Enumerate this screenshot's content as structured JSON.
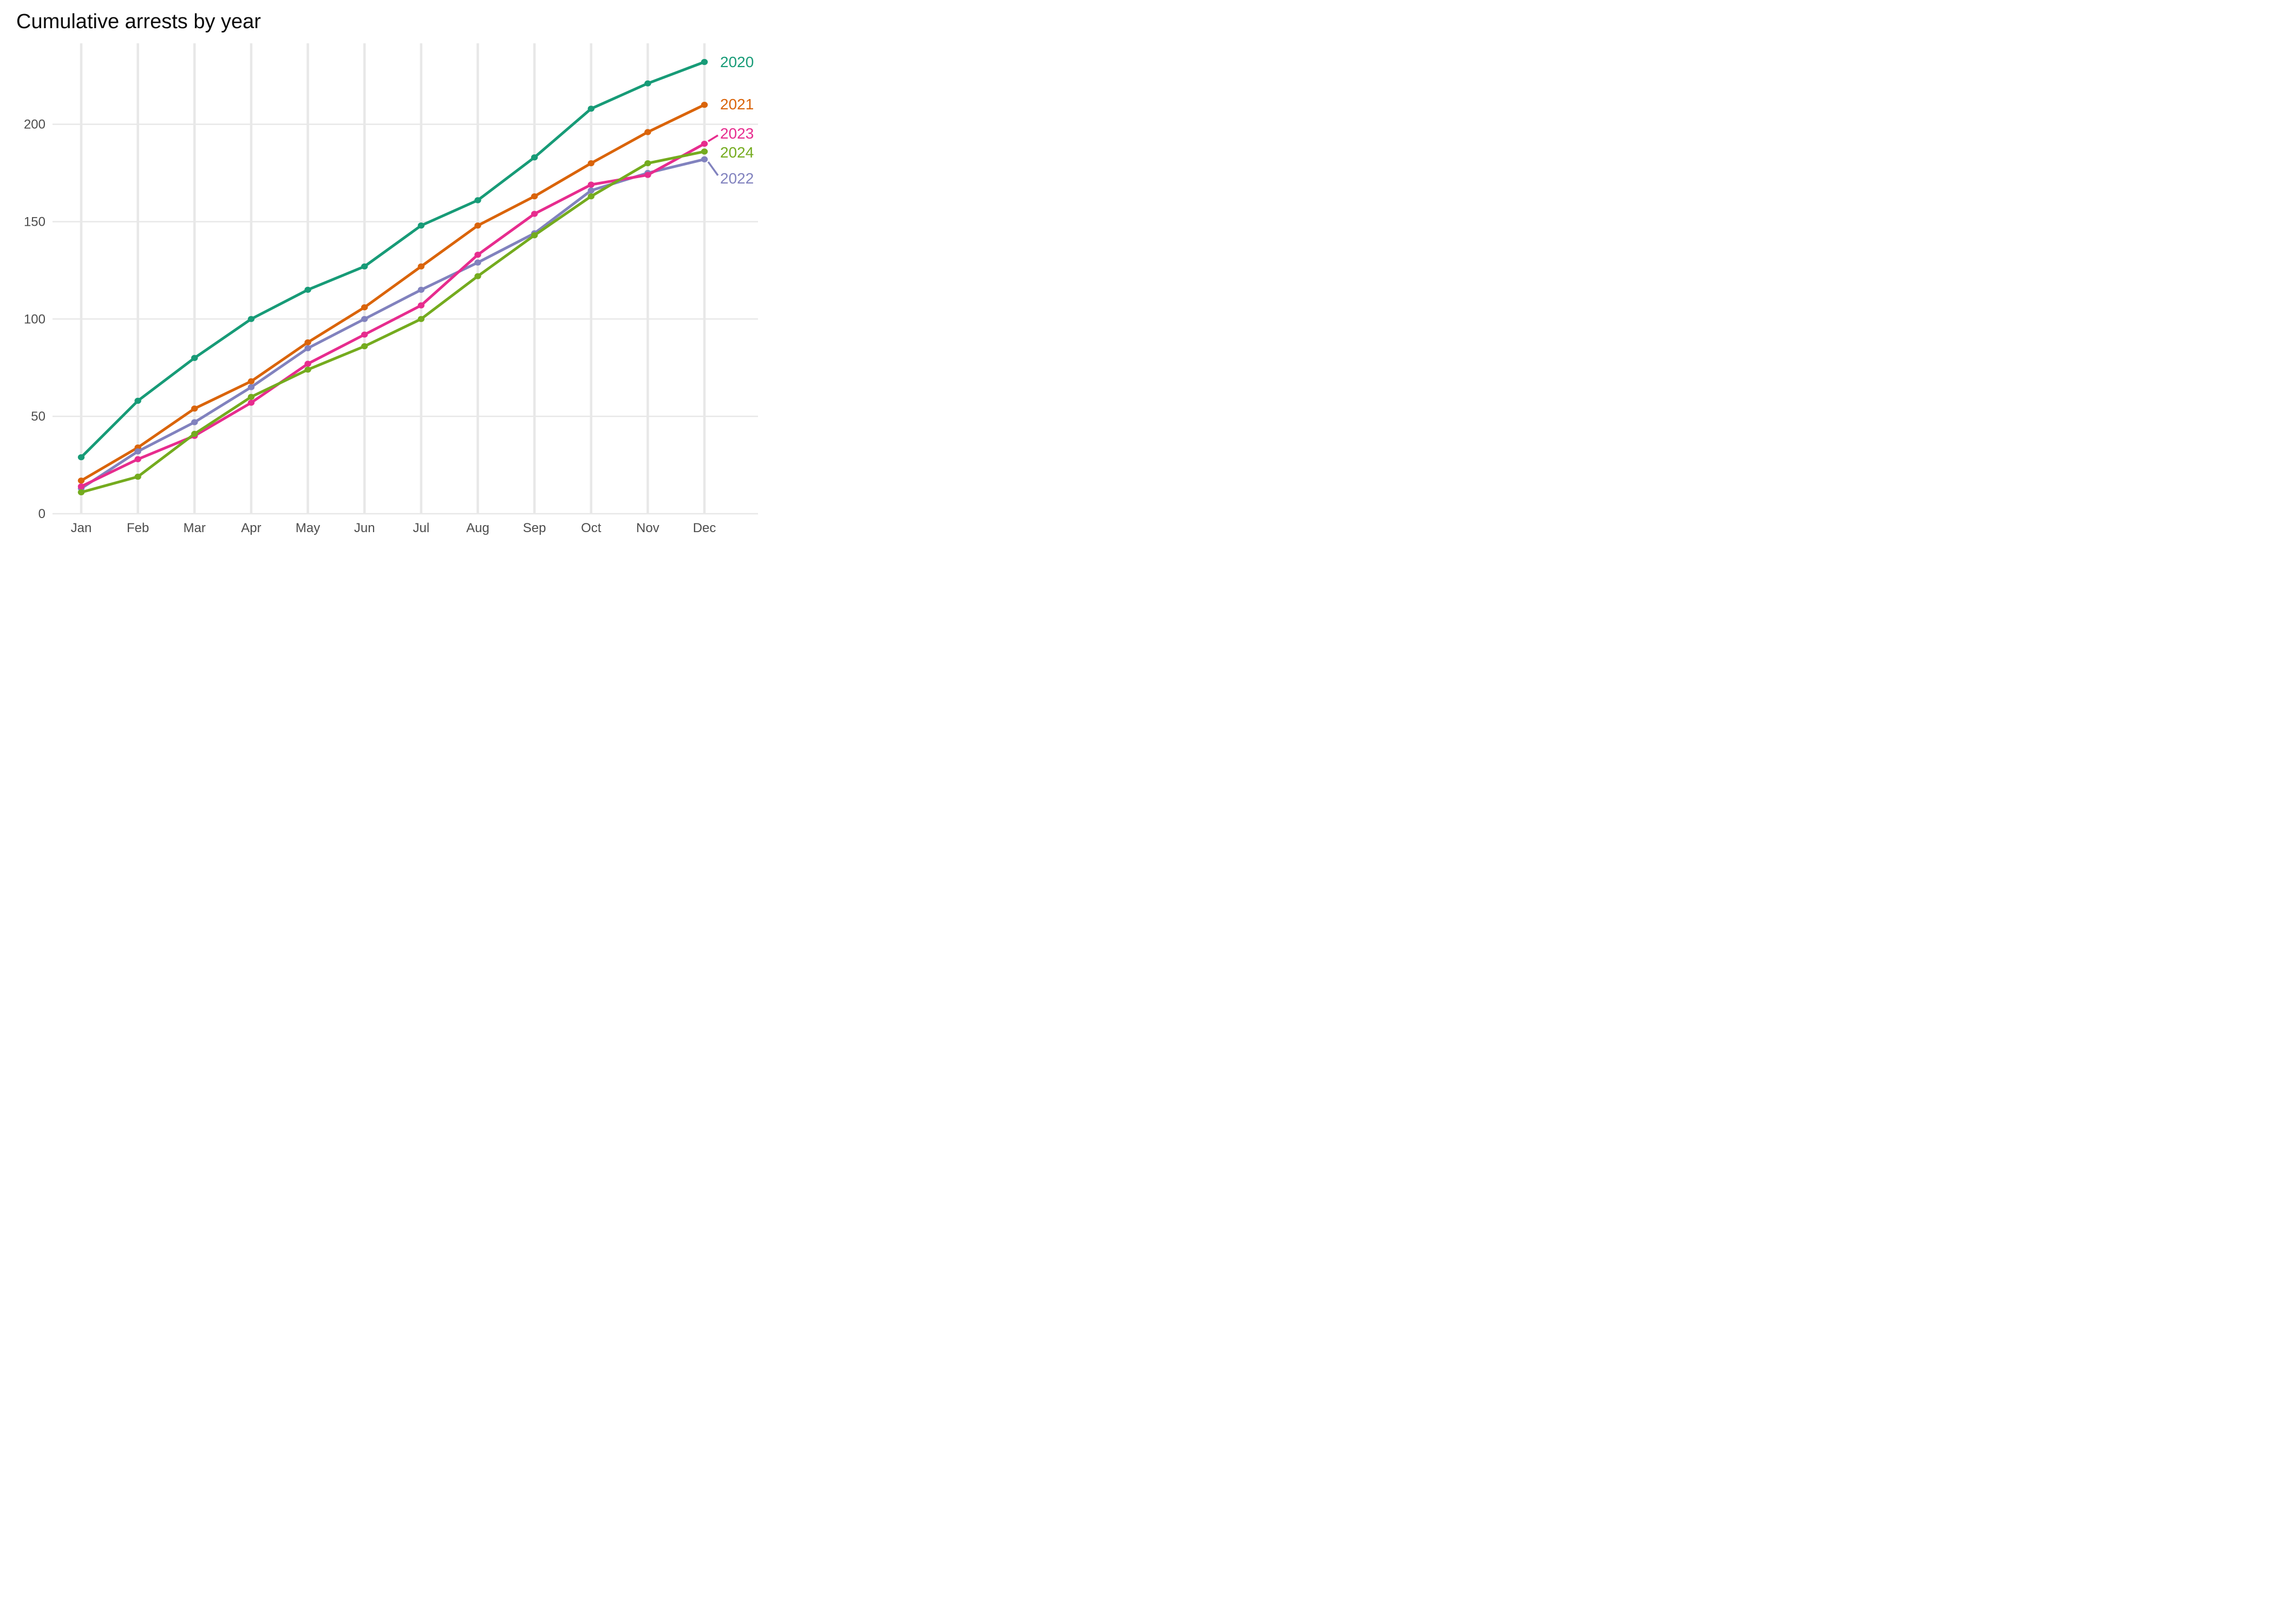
{
  "title": "Cumulative arrests by year",
  "chart_data": {
    "type": "line",
    "categories": [
      "Jan",
      "Feb",
      "Mar",
      "Apr",
      "May",
      "Jun",
      "Jul",
      "Aug",
      "Sep",
      "Oct",
      "Nov",
      "Dec"
    ],
    "series": [
      {
        "name": "2020",
        "color": "#179B77",
        "values": [
          29,
          58,
          80,
          100,
          115,
          127,
          148,
          161,
          183,
          208,
          221,
          232
        ]
      },
      {
        "name": "2021",
        "color": "#DA640A",
        "values": [
          17,
          34,
          54,
          68,
          88,
          106,
          127,
          148,
          163,
          180,
          196,
          210
        ]
      },
      {
        "name": "2022",
        "color": "#8182BE",
        "values": [
          13,
          32,
          47,
          65,
          85,
          100,
          115,
          129,
          144,
          166,
          175,
          182
        ]
      },
      {
        "name": "2023",
        "color": "#E72C8E",
        "values": [
          14,
          28,
          40,
          57,
          77,
          92,
          107,
          133,
          154,
          169,
          174,
          190
        ]
      },
      {
        "name": "2024",
        "color": "#74AB1E",
        "values": [
          11,
          19,
          41,
          60,
          74,
          86,
          100,
          122,
          143,
          163,
          180,
          186
        ]
      }
    ],
    "end_label_order_top_to_bottom": [
      "2020",
      "2021",
      "2023",
      "2024",
      "2022"
    ],
    "yticks": [
      0,
      50,
      100,
      150,
      200
    ],
    "ylim": [
      0,
      240
    ],
    "xlabel": "",
    "ylabel": "",
    "grid": true,
    "legend_position": "right-end-labels",
    "colors": {
      "background": "#FFFFFF",
      "gridline": "#E8E8E8",
      "axis_text": "#4D4D4D",
      "title_text": "#0B0B0B"
    }
  }
}
